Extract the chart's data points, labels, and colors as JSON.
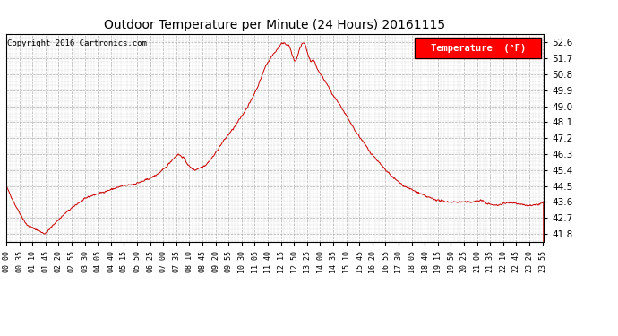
{
  "title": "Outdoor Temperature per Minute (24 Hours) 20161115",
  "copyright": "Copyright 2016 Cartronics.com",
  "legend_label": "Temperature  (°F)",
  "line_color": "#cc0000",
  "background_color": "#ffffff",
  "grid_color": "#b0b0b0",
  "yticks": [
    41.8,
    42.7,
    43.6,
    44.5,
    45.4,
    46.3,
    47.2,
    48.1,
    49.0,
    49.9,
    50.8,
    51.7,
    52.6
  ],
  "ylim": [
    41.35,
    53.1
  ],
  "total_minutes": 1440,
  "x_labels": [
    "00:00",
    "00:35",
    "01:10",
    "01:45",
    "02:20",
    "02:55",
    "03:30",
    "04:05",
    "04:40",
    "05:15",
    "05:50",
    "06:25",
    "07:00",
    "07:35",
    "08:10",
    "08:45",
    "09:20",
    "09:55",
    "10:30",
    "11:05",
    "11:40",
    "12:15",
    "12:50",
    "13:25",
    "14:00",
    "14:35",
    "15:10",
    "15:45",
    "16:20",
    "16:55",
    "17:30",
    "18:05",
    "18:40",
    "19:15",
    "19:50",
    "20:25",
    "21:00",
    "21:35",
    "22:10",
    "22:45",
    "23:20",
    "23:55"
  ],
  "keypoints": [
    [
      0,
      44.5
    ],
    [
      25,
      43.4
    ],
    [
      55,
      42.3
    ],
    [
      105,
      41.8
    ],
    [
      130,
      42.4
    ],
    [
      160,
      43.0
    ],
    [
      190,
      43.5
    ],
    [
      220,
      43.9
    ],
    [
      250,
      44.1
    ],
    [
      280,
      44.3
    ],
    [
      310,
      44.5
    ],
    [
      340,
      44.6
    ],
    [
      370,
      44.8
    ],
    [
      400,
      45.1
    ],
    [
      425,
      45.5
    ],
    [
      445,
      46.0
    ],
    [
      460,
      46.3
    ],
    [
      475,
      46.1
    ],
    [
      490,
      45.6
    ],
    [
      505,
      45.4
    ],
    [
      515,
      45.5
    ],
    [
      535,
      45.7
    ],
    [
      555,
      46.2
    ],
    [
      580,
      47.0
    ],
    [
      610,
      47.8
    ],
    [
      635,
      48.6
    ],
    [
      655,
      49.3
    ],
    [
      675,
      50.2
    ],
    [
      695,
      51.3
    ],
    [
      710,
      51.8
    ],
    [
      725,
      52.2
    ],
    [
      735,
      52.5
    ],
    [
      743,
      52.6
    ],
    [
      750,
      52.5
    ],
    [
      758,
      52.4
    ],
    [
      765,
      51.9
    ],
    [
      772,
      51.5
    ],
    [
      778,
      51.7
    ],
    [
      785,
      52.2
    ],
    [
      793,
      52.6
    ],
    [
      800,
      52.5
    ],
    [
      808,
      51.9
    ],
    [
      815,
      51.5
    ],
    [
      822,
      51.6
    ],
    [
      828,
      51.4
    ],
    [
      835,
      51.0
    ],
    [
      845,
      50.7
    ],
    [
      860,
      50.2
    ],
    [
      875,
      49.6
    ],
    [
      895,
      49.0
    ],
    [
      915,
      48.3
    ],
    [
      935,
      47.6
    ],
    [
      955,
      47.0
    ],
    [
      975,
      46.4
    ],
    [
      995,
      45.9
    ],
    [
      1015,
      45.4
    ],
    [
      1040,
      44.9
    ],
    [
      1065,
      44.5
    ],
    [
      1095,
      44.2
    ],
    [
      1125,
      43.9
    ],
    [
      1155,
      43.7
    ],
    [
      1185,
      43.6
    ],
    [
      1215,
      43.6
    ],
    [
      1245,
      43.6
    ],
    [
      1270,
      43.7
    ],
    [
      1290,
      43.5
    ],
    [
      1310,
      43.4
    ],
    [
      1330,
      43.5
    ],
    [
      1350,
      43.6
    ],
    [
      1370,
      43.5
    ],
    [
      1390,
      43.4
    ],
    [
      1410,
      43.4
    ],
    [
      1430,
      43.5
    ],
    [
      1439,
      43.6
    ]
  ]
}
